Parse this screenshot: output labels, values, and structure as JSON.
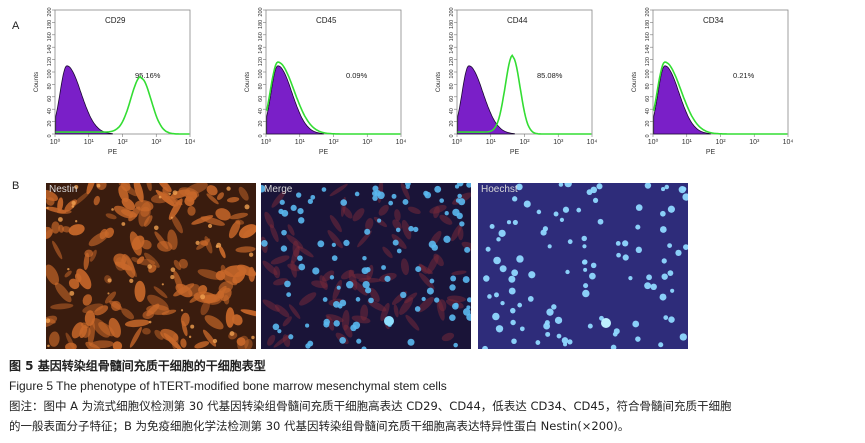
{
  "panel_a_label": "A",
  "panel_b_label": "B",
  "flow_panels": [
    {
      "marker": "CD29",
      "percent": "95.16%",
      "kind": "shifted",
      "peak_log": 2.55
    },
    {
      "marker": "CD45",
      "percent": "0.09%",
      "kind": "overlap",
      "peak_log": 0.35
    },
    {
      "marker": "CD44",
      "percent": "85.08%",
      "kind": "shifted",
      "peak_log": 1.65
    },
    {
      "marker": "CD34",
      "percent": "0.21%",
      "kind": "overlap",
      "peak_log": 0.35
    }
  ],
  "axis": {
    "ylabel": "Counts",
    "xlabel": "PE",
    "xticks": [
      "10⁰",
      "10¹",
      "10²",
      "10³",
      "10⁴"
    ],
    "yticks": [
      "0",
      "20",
      "40",
      "60",
      "80",
      "100",
      "120",
      "140",
      "160",
      "180",
      "200"
    ]
  },
  "colors": {
    "control_fill": "#7a1fc8",
    "sample_line": "#33dd33",
    "nestin_bg": "#3a1c0e",
    "nestin_cell": "#c8682a",
    "merge_bg": "#1a1438",
    "hoechst_bg": "#2e2c7a",
    "nucleus": "#5ab8f0"
  },
  "photos": [
    {
      "label": "Nestin",
      "style": "nestin"
    },
    {
      "label": "Merge",
      "style": "merge"
    },
    {
      "label": "Hoechst",
      "style": "hoechst"
    }
  ],
  "caption": {
    "title_cn": "图 5   基因转染组骨髓间充质干细胞的干细胞表型",
    "title_en": "Figure 5    The phenotype of hTERT-modified bone marrow mesenchymal stem cells",
    "note_line1": "图注：图中 A 为流式细胞仪检测第 30 代基因转染组骨髓间充质干细胞高表达 CD29、CD44，低表达 CD34、CD45，符合骨髓间充质干细胞",
    "note_line2": "的一般表面分子特征；B 为免疫细胞化学法检测第 30 代基因转染组骨髓间充质干细胞高表达特异性蛋白 Nestin(×200)。"
  }
}
